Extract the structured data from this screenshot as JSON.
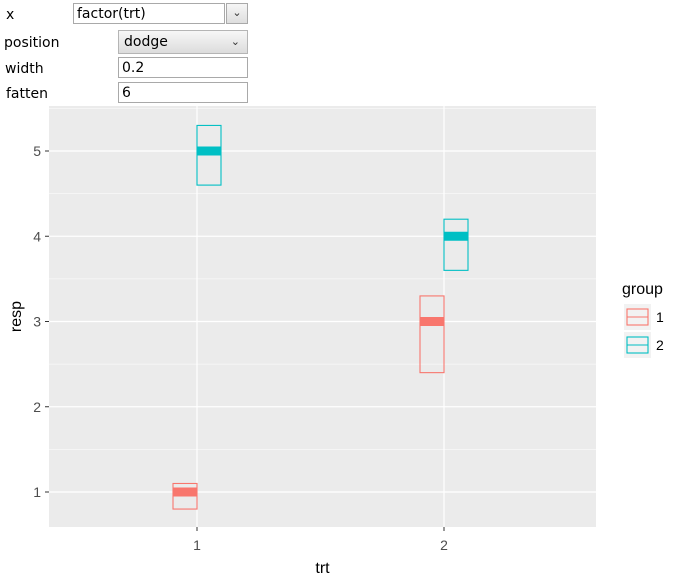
{
  "controls": {
    "x": {
      "label": "x",
      "value": "factor(trt)",
      "button_icon": "chevron-down"
    },
    "position": {
      "label": "position",
      "value": "dodge",
      "icon": "chevron-down"
    },
    "width": {
      "label": "width",
      "value": "0.2"
    },
    "fatten": {
      "label": "fatten",
      "value": "6"
    }
  },
  "colors": {
    "panel": "#ebebeb",
    "grid": "#ffffff",
    "group1": "#F8766D",
    "group2": "#00BFC4",
    "axis_text": "#4d4d4d"
  },
  "chart_data": {
    "type": "crossbar",
    "xlabel": "trt",
    "ylabel": "resp",
    "categories": [
      "1",
      "2"
    ],
    "y_ticks": [
      1,
      2,
      3,
      4,
      5
    ],
    "ylim": [
      0.6,
      5.5
    ],
    "legend": {
      "title": "group",
      "placement": "right"
    },
    "series": [
      {
        "name": "1",
        "color": "#F8766D",
        "values": [
          {
            "x": "1",
            "y": 1,
            "lower": 0.8,
            "upper": 1.1
          },
          {
            "x": "2",
            "y": 3,
            "lower": 2.4,
            "upper": 3.3
          }
        ]
      },
      {
        "name": "2",
        "color": "#00BFC4",
        "values": [
          {
            "x": "1",
            "y": 5,
            "lower": 4.6,
            "upper": 5.3
          },
          {
            "x": "2",
            "y": 4,
            "lower": 3.6,
            "upper": 4.2
          }
        ]
      }
    ]
  }
}
